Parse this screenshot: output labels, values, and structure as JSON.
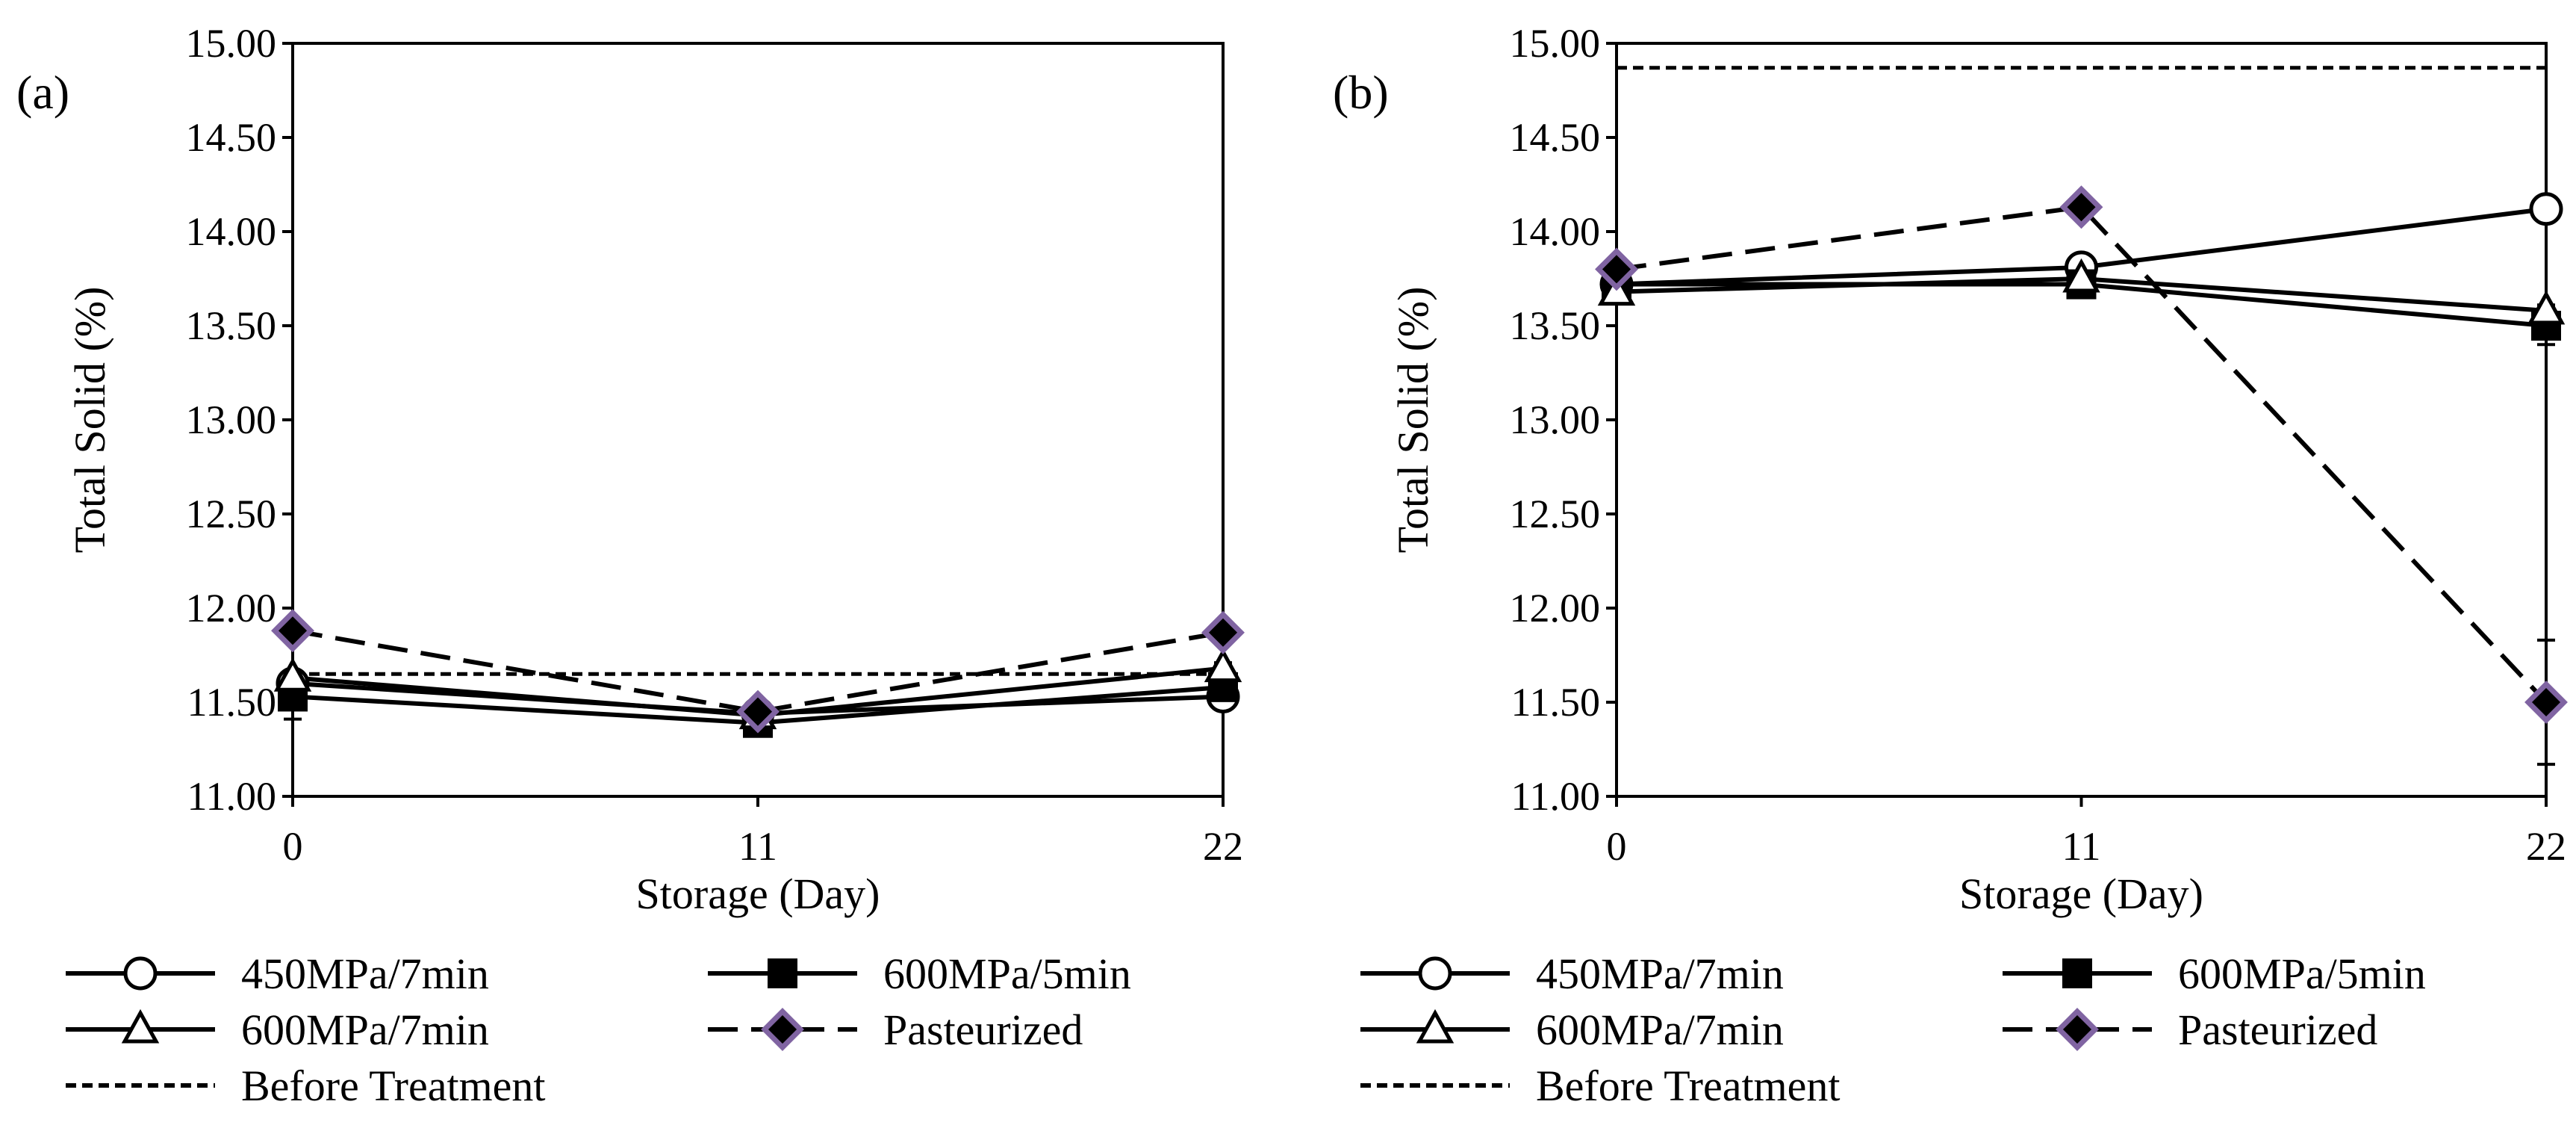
{
  "chart_data": [
    {
      "type": "line",
      "panel_label": "(a)",
      "xlabel": "Storage (Day)",
      "ylabel": "Total Solid (%)",
      "x": [
        0,
        11,
        22
      ],
      "x_ticks": [
        "0",
        "11",
        "22"
      ],
      "ylim": [
        11.0,
        15.0
      ],
      "y_ticks": [
        "11.00",
        "11.50",
        "12.00",
        "12.50",
        "13.00",
        "13.50",
        "14.00",
        "14.50",
        "15.00"
      ],
      "series": [
        {
          "name": "450MPa/7min",
          "marker": "circle",
          "line": "solid",
          "values": [
            11.6,
            11.44,
            11.53
          ],
          "errors": [
            0.03,
            0.02,
            0.03
          ]
        },
        {
          "name": "600MPa/5min",
          "marker": "square",
          "line": "solid",
          "values": [
            11.53,
            11.39,
            11.58
          ],
          "errors": [
            0.12,
            0.02,
            0.03
          ]
        },
        {
          "name": "600MPa/7min",
          "marker": "triangle",
          "line": "solid",
          "values": [
            11.63,
            11.43,
            11.68
          ],
          "errors": [
            0.03,
            0.02,
            0.03
          ]
        },
        {
          "name": "Pasteurized",
          "marker": "diamond",
          "line": "dashed",
          "values": [
            11.88,
            11.45,
            11.87
          ],
          "errors": [
            0.03,
            0.02,
            0.03
          ]
        }
      ],
      "reference": {
        "name": "Before Treatment",
        "value": 11.65
      }
    },
    {
      "type": "line",
      "panel_label": "(b)",
      "xlabel": "Storage (Day)",
      "ylabel": "Total Solid (%)",
      "x": [
        0,
        11,
        22
      ],
      "x_ticks": [
        "0",
        "11",
        "22"
      ],
      "ylim": [
        11.0,
        15.0
      ],
      "y_ticks": [
        "11.00",
        "11.50",
        "12.00",
        "12.50",
        "13.00",
        "13.50",
        "14.00",
        "14.50",
        "15.00"
      ],
      "series": [
        {
          "name": "450MPa/7min",
          "marker": "circle",
          "line": "solid",
          "values": [
            13.72,
            13.81,
            14.12
          ],
          "errors": [
            0.03,
            0.03,
            0.03
          ]
        },
        {
          "name": "600MPa/5min",
          "marker": "square",
          "line": "solid",
          "values": [
            13.72,
            13.72,
            13.5
          ],
          "errors": [
            0.03,
            0.03,
            0.1
          ]
        },
        {
          "name": "600MPa/7min",
          "marker": "triangle",
          "line": "solid",
          "values": [
            13.68,
            13.75,
            13.58
          ],
          "errors": [
            0.03,
            0.03,
            0.03
          ]
        },
        {
          "name": "Pasteurized",
          "marker": "diamond",
          "line": "dashed",
          "values": [
            13.8,
            14.13,
            11.5
          ],
          "errors": [
            0.03,
            0.03,
            0.33
          ]
        }
      ],
      "reference": {
        "name": "Before Treatment",
        "value": 14.87
      }
    }
  ],
  "legend": {
    "items": [
      {
        "label": "450MPa/7min",
        "marker": "circle",
        "line": "solid"
      },
      {
        "label": "600MPa/5min",
        "marker": "square",
        "line": "solid"
      },
      {
        "label": "600MPa/7min",
        "marker": "triangle",
        "line": "solid"
      },
      {
        "label": "Pasteurized",
        "marker": "diamond",
        "line": "dashed"
      },
      {
        "label": "Before Treatment",
        "marker": "none",
        "line": "short-dash"
      }
    ]
  },
  "colors": {
    "line": "#000000",
    "diamond_fill": "#000000",
    "diamond_stroke": "#8064A2",
    "hollow_fill": "#ffffff"
  }
}
